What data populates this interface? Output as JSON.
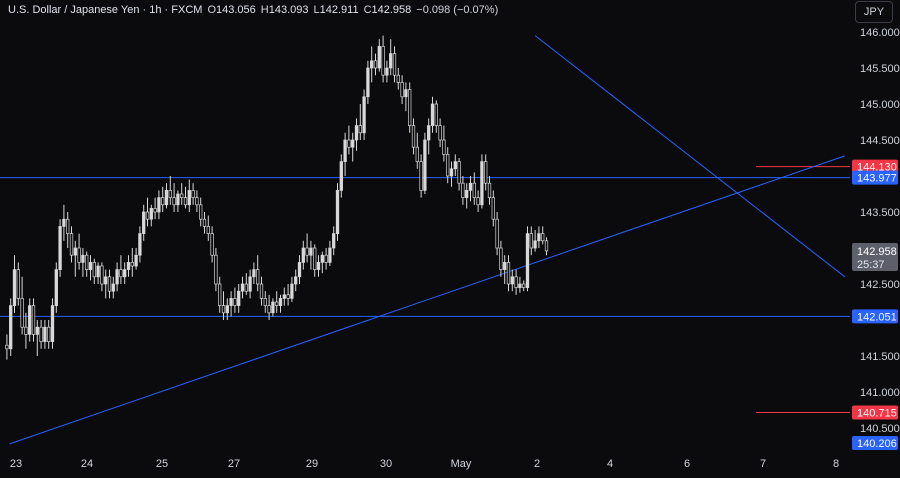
{
  "header": {
    "symbol_title": "U.S. Dollar / Japanese Yen · 1h · FXCM",
    "open_label": "O",
    "open_value": "143.056",
    "high_label": "H",
    "high_value": "143.093",
    "low_label": "L",
    "low_value": "142.911",
    "close_label": "C",
    "close_value": "142.958",
    "change": "−0.098 (−0.07%)"
  },
  "currency_button": "JPY",
  "colors": {
    "background": "#0b0b0d",
    "candle": "#d8d8d8",
    "axis_text": "#d1d4dc",
    "level_line": "#2962ff",
    "red_badge": "#f23645",
    "blue_badge": "#2962ff",
    "current_badge": "#5d606b"
  },
  "chart_data": {
    "type": "candlestick",
    "ylim": [
      140.206,
      146.2
    ],
    "y_ticks": [
      "146.000",
      "145.500",
      "145.000",
      "144.500",
      "143.500",
      "142.500",
      "141.500",
      "141.000",
      "140.500"
    ],
    "x_ticks": [
      "23",
      "24",
      "25",
      "27",
      "29",
      "30",
      "May",
      "2",
      "4",
      "6",
      "7",
      "8"
    ],
    "horizontal_levels": [
      143.977,
      142.051
    ],
    "short_red_levels": [
      144.13,
      140.715
    ],
    "trendlines": [
      {
        "name": "rising-trendline",
        "start": {
          "x_bar": 1.2,
          "y": 140.28
        },
        "end": {
          "x_bar": 221,
          "y": 144.28
        }
      },
      {
        "name": "falling-trendline",
        "start": {
          "x_bar": 139.5,
          "y": 145.95
        },
        "end": {
          "x_bar": 221,
          "y": 142.6
        }
      }
    ],
    "price_badges": [
      {
        "label": "144.130",
        "kind": "red"
      },
      {
        "label": "143.977",
        "kind": "blue"
      },
      {
        "label": "142.051",
        "kind": "blue"
      },
      {
        "label": "140.715",
        "kind": "red"
      },
      {
        "label": "140.206",
        "kind": "blue"
      }
    ],
    "current_price": {
      "label": "142.958",
      "countdown": "25:37"
    },
    "candles": [
      [
        141.65,
        141.8,
        141.45,
        141.6
      ],
      [
        141.6,
        142.3,
        141.5,
        142.2
      ],
      [
        142.2,
        142.9,
        142.1,
        142.7
      ],
      [
        142.7,
        142.8,
        142.2,
        142.3
      ],
      [
        142.3,
        142.6,
        141.8,
        141.9
      ],
      [
        141.9,
        142.1,
        141.6,
        141.8
      ],
      [
        141.8,
        142.3,
        141.7,
        142.2
      ],
      [
        142.2,
        142.3,
        141.7,
        141.8
      ],
      [
        141.8,
        142.0,
        141.5,
        141.9
      ],
      [
        141.9,
        142.0,
        141.6,
        141.7
      ],
      [
        141.7,
        142.0,
        141.6,
        141.9
      ],
      [
        141.9,
        142.0,
        141.6,
        141.7
      ],
      [
        141.7,
        142.3,
        141.6,
        142.2
      ],
      [
        142.2,
        142.8,
        142.1,
        142.7
      ],
      [
        142.7,
        143.4,
        142.6,
        143.3
      ],
      [
        143.3,
        143.6,
        143.1,
        143.4
      ],
      [
        143.4,
        143.5,
        143.0,
        143.2
      ],
      [
        143.2,
        143.3,
        142.8,
        142.9
      ],
      [
        142.9,
        143.1,
        142.6,
        143.0
      ],
      [
        143.0,
        143.2,
        142.7,
        142.8
      ],
      [
        142.8,
        143.0,
        142.6,
        142.9
      ],
      [
        142.9,
        142.95,
        142.6,
        142.7
      ],
      [
        142.7,
        142.9,
        142.55,
        142.8
      ],
      [
        142.8,
        142.85,
        142.5,
        142.6
      ],
      [
        142.6,
        142.8,
        142.5,
        142.75
      ],
      [
        142.75,
        142.8,
        142.4,
        142.5
      ],
      [
        142.5,
        142.7,
        142.3,
        142.6
      ],
      [
        142.6,
        142.7,
        142.3,
        142.4
      ],
      [
        142.4,
        142.6,
        142.3,
        142.5
      ],
      [
        142.5,
        142.8,
        142.4,
        142.7
      ],
      [
        142.7,
        142.9,
        142.5,
        142.6
      ],
      [
        142.6,
        142.8,
        142.5,
        142.7
      ],
      [
        142.7,
        142.9,
        142.6,
        142.8
      ],
      [
        142.8,
        143.0,
        142.6,
        142.75
      ],
      [
        142.75,
        143.0,
        142.7,
        142.9
      ],
      [
        142.9,
        143.3,
        142.8,
        143.2
      ],
      [
        143.2,
        143.6,
        143.1,
        143.5
      ],
      [
        143.5,
        143.7,
        143.3,
        143.4
      ],
      [
        143.4,
        143.6,
        143.3,
        143.55
      ],
      [
        143.55,
        143.7,
        143.4,
        143.5
      ],
      [
        143.5,
        143.8,
        143.4,
        143.7
      ],
      [
        143.7,
        143.85,
        143.5,
        143.6
      ],
      [
        143.6,
        143.9,
        143.55,
        143.8
      ],
      [
        143.8,
        144.0,
        143.6,
        143.7
      ],
      [
        143.7,
        143.9,
        143.5,
        143.6
      ],
      [
        143.6,
        143.8,
        143.5,
        143.75
      ],
      [
        143.75,
        143.9,
        143.6,
        143.7
      ],
      [
        143.7,
        143.85,
        143.55,
        143.6
      ],
      [
        143.6,
        143.95,
        143.5,
        143.8
      ],
      [
        143.8,
        143.9,
        143.6,
        143.7
      ],
      [
        143.7,
        143.8,
        143.5,
        143.6
      ],
      [
        143.6,
        143.7,
        143.3,
        143.4
      ],
      [
        143.4,
        143.5,
        143.2,
        143.3
      ],
      [
        143.3,
        143.45,
        143.1,
        143.2
      ],
      [
        143.2,
        143.3,
        142.8,
        142.9
      ],
      [
        142.9,
        143.0,
        142.4,
        142.5
      ],
      [
        142.5,
        142.6,
        142.1,
        142.2
      ],
      [
        142.2,
        142.4,
        142.0,
        142.1
      ],
      [
        142.1,
        142.3,
        142.0,
        142.2
      ],
      [
        142.2,
        142.4,
        142.05,
        142.3
      ],
      [
        142.3,
        142.45,
        142.1,
        142.2
      ],
      [
        142.2,
        142.5,
        142.1,
        142.4
      ],
      [
        142.4,
        142.6,
        142.3,
        142.5
      ],
      [
        142.5,
        142.65,
        142.35,
        142.4
      ],
      [
        142.4,
        142.7,
        142.3,
        142.6
      ],
      [
        142.6,
        142.8,
        142.5,
        142.7
      ],
      [
        142.7,
        142.9,
        142.4,
        142.5
      ],
      [
        142.5,
        142.6,
        142.2,
        142.3
      ],
      [
        142.3,
        142.4,
        142.1,
        142.2
      ],
      [
        142.2,
        142.35,
        142.0,
        142.1
      ],
      [
        142.1,
        142.3,
        142.05,
        142.25
      ],
      [
        142.25,
        142.4,
        142.1,
        142.2
      ],
      [
        142.2,
        142.35,
        142.1,
        142.3
      ],
      [
        142.3,
        142.45,
        142.2,
        142.35
      ],
      [
        142.35,
        142.5,
        142.2,
        142.3
      ],
      [
        142.3,
        142.6,
        142.25,
        142.5
      ],
      [
        142.5,
        142.7,
        142.4,
        142.6
      ],
      [
        142.6,
        142.9,
        142.5,
        142.8
      ],
      [
        142.8,
        143.1,
        142.7,
        143.0
      ],
      [
        143.0,
        143.2,
        142.8,
        142.9
      ],
      [
        142.9,
        143.1,
        142.7,
        143.0
      ],
      [
        143.0,
        143.05,
        142.6,
        142.7
      ],
      [
        142.7,
        142.9,
        142.6,
        142.8
      ],
      [
        142.8,
        142.95,
        142.65,
        142.9
      ],
      [
        142.9,
        143.0,
        142.7,
        142.8
      ],
      [
        142.8,
        143.1,
        142.75,
        143.0
      ],
      [
        143.0,
        143.3,
        142.9,
        143.2
      ],
      [
        143.2,
        143.9,
        143.1,
        143.8
      ],
      [
        143.8,
        144.3,
        143.7,
        144.2
      ],
      [
        144.2,
        144.6,
        144.0,
        144.5
      ],
      [
        144.5,
        144.7,
        144.3,
        144.4
      ],
      [
        144.4,
        144.6,
        144.2,
        144.5
      ],
      [
        144.5,
        144.8,
        144.35,
        144.7
      ],
      [
        144.7,
        145.0,
        144.5,
        144.6
      ],
      [
        144.6,
        145.2,
        144.5,
        145.1
      ],
      [
        145.1,
        145.6,
        145.0,
        145.5
      ],
      [
        145.5,
        145.8,
        145.3,
        145.6
      ],
      [
        145.6,
        145.7,
        145.4,
        145.5
      ],
      [
        145.5,
        145.9,
        145.45,
        145.8
      ],
      [
        145.8,
        145.95,
        145.3,
        145.4
      ],
      [
        145.4,
        145.6,
        145.3,
        145.5
      ],
      [
        145.5,
        145.9,
        145.4,
        145.7
      ],
      [
        145.7,
        145.8,
        145.3,
        145.4
      ],
      [
        145.4,
        145.5,
        145.2,
        145.3
      ],
      [
        145.3,
        145.4,
        145.0,
        145.1
      ],
      [
        145.1,
        145.3,
        144.9,
        145.2
      ],
      [
        145.2,
        145.3,
        144.6,
        144.7
      ],
      [
        144.7,
        144.8,
        144.3,
        144.4
      ],
      [
        144.4,
        144.6,
        144.1,
        144.2
      ],
      [
        144.2,
        144.3,
        143.7,
        143.8
      ],
      [
        143.8,
        144.6,
        143.75,
        144.5
      ],
      [
        144.5,
        144.8,
        144.3,
        144.7
      ],
      [
        144.7,
        145.1,
        144.6,
        145.0
      ],
      [
        145.0,
        145.05,
        144.6,
        144.7
      ],
      [
        144.7,
        144.8,
        144.4,
        144.5
      ],
      [
        144.5,
        144.7,
        144.2,
        144.3
      ],
      [
        144.3,
        144.4,
        143.9,
        144.0
      ],
      [
        144.0,
        144.2,
        143.85,
        144.1
      ],
      [
        144.1,
        144.3,
        144.0,
        144.2
      ],
      [
        144.2,
        144.25,
        143.8,
        143.9
      ],
      [
        143.9,
        144.0,
        143.6,
        143.7
      ],
      [
        143.7,
        143.9,
        143.55,
        143.8
      ],
      [
        143.8,
        144.0,
        143.65,
        143.9
      ],
      [
        143.9,
        144.05,
        143.6,
        143.7
      ],
      [
        143.7,
        143.8,
        143.5,
        143.6
      ],
      [
        143.6,
        144.3,
        143.55,
        144.2
      ],
      [
        144.2,
        144.3,
        143.8,
        143.9
      ],
      [
        143.9,
        144.0,
        143.6,
        143.7
      ],
      [
        143.7,
        143.8,
        143.3,
        143.4
      ],
      [
        143.4,
        143.5,
        142.9,
        143.0
      ],
      [
        143.0,
        143.1,
        142.6,
        142.7
      ],
      [
        142.7,
        142.9,
        142.5,
        142.8
      ],
      [
        142.8,
        142.9,
        142.4,
        142.5
      ],
      [
        142.5,
        142.7,
        142.4,
        142.6
      ],
      [
        142.6,
        142.7,
        142.35,
        142.45
      ],
      [
        142.45,
        142.6,
        142.38,
        142.5
      ],
      [
        142.5,
        142.55,
        142.4,
        142.45
      ],
      [
        142.45,
        143.3,
        142.4,
        143.2
      ],
      [
        143.2,
        143.3,
        142.9,
        143.0
      ],
      [
        143.0,
        143.25,
        142.95,
        143.1
      ],
      [
        143.1,
        143.3,
        143.0,
        143.2
      ],
      [
        143.2,
        143.3,
        143.05,
        143.1
      ],
      [
        143.1,
        143.15,
        142.9,
        142.96
      ]
    ]
  }
}
